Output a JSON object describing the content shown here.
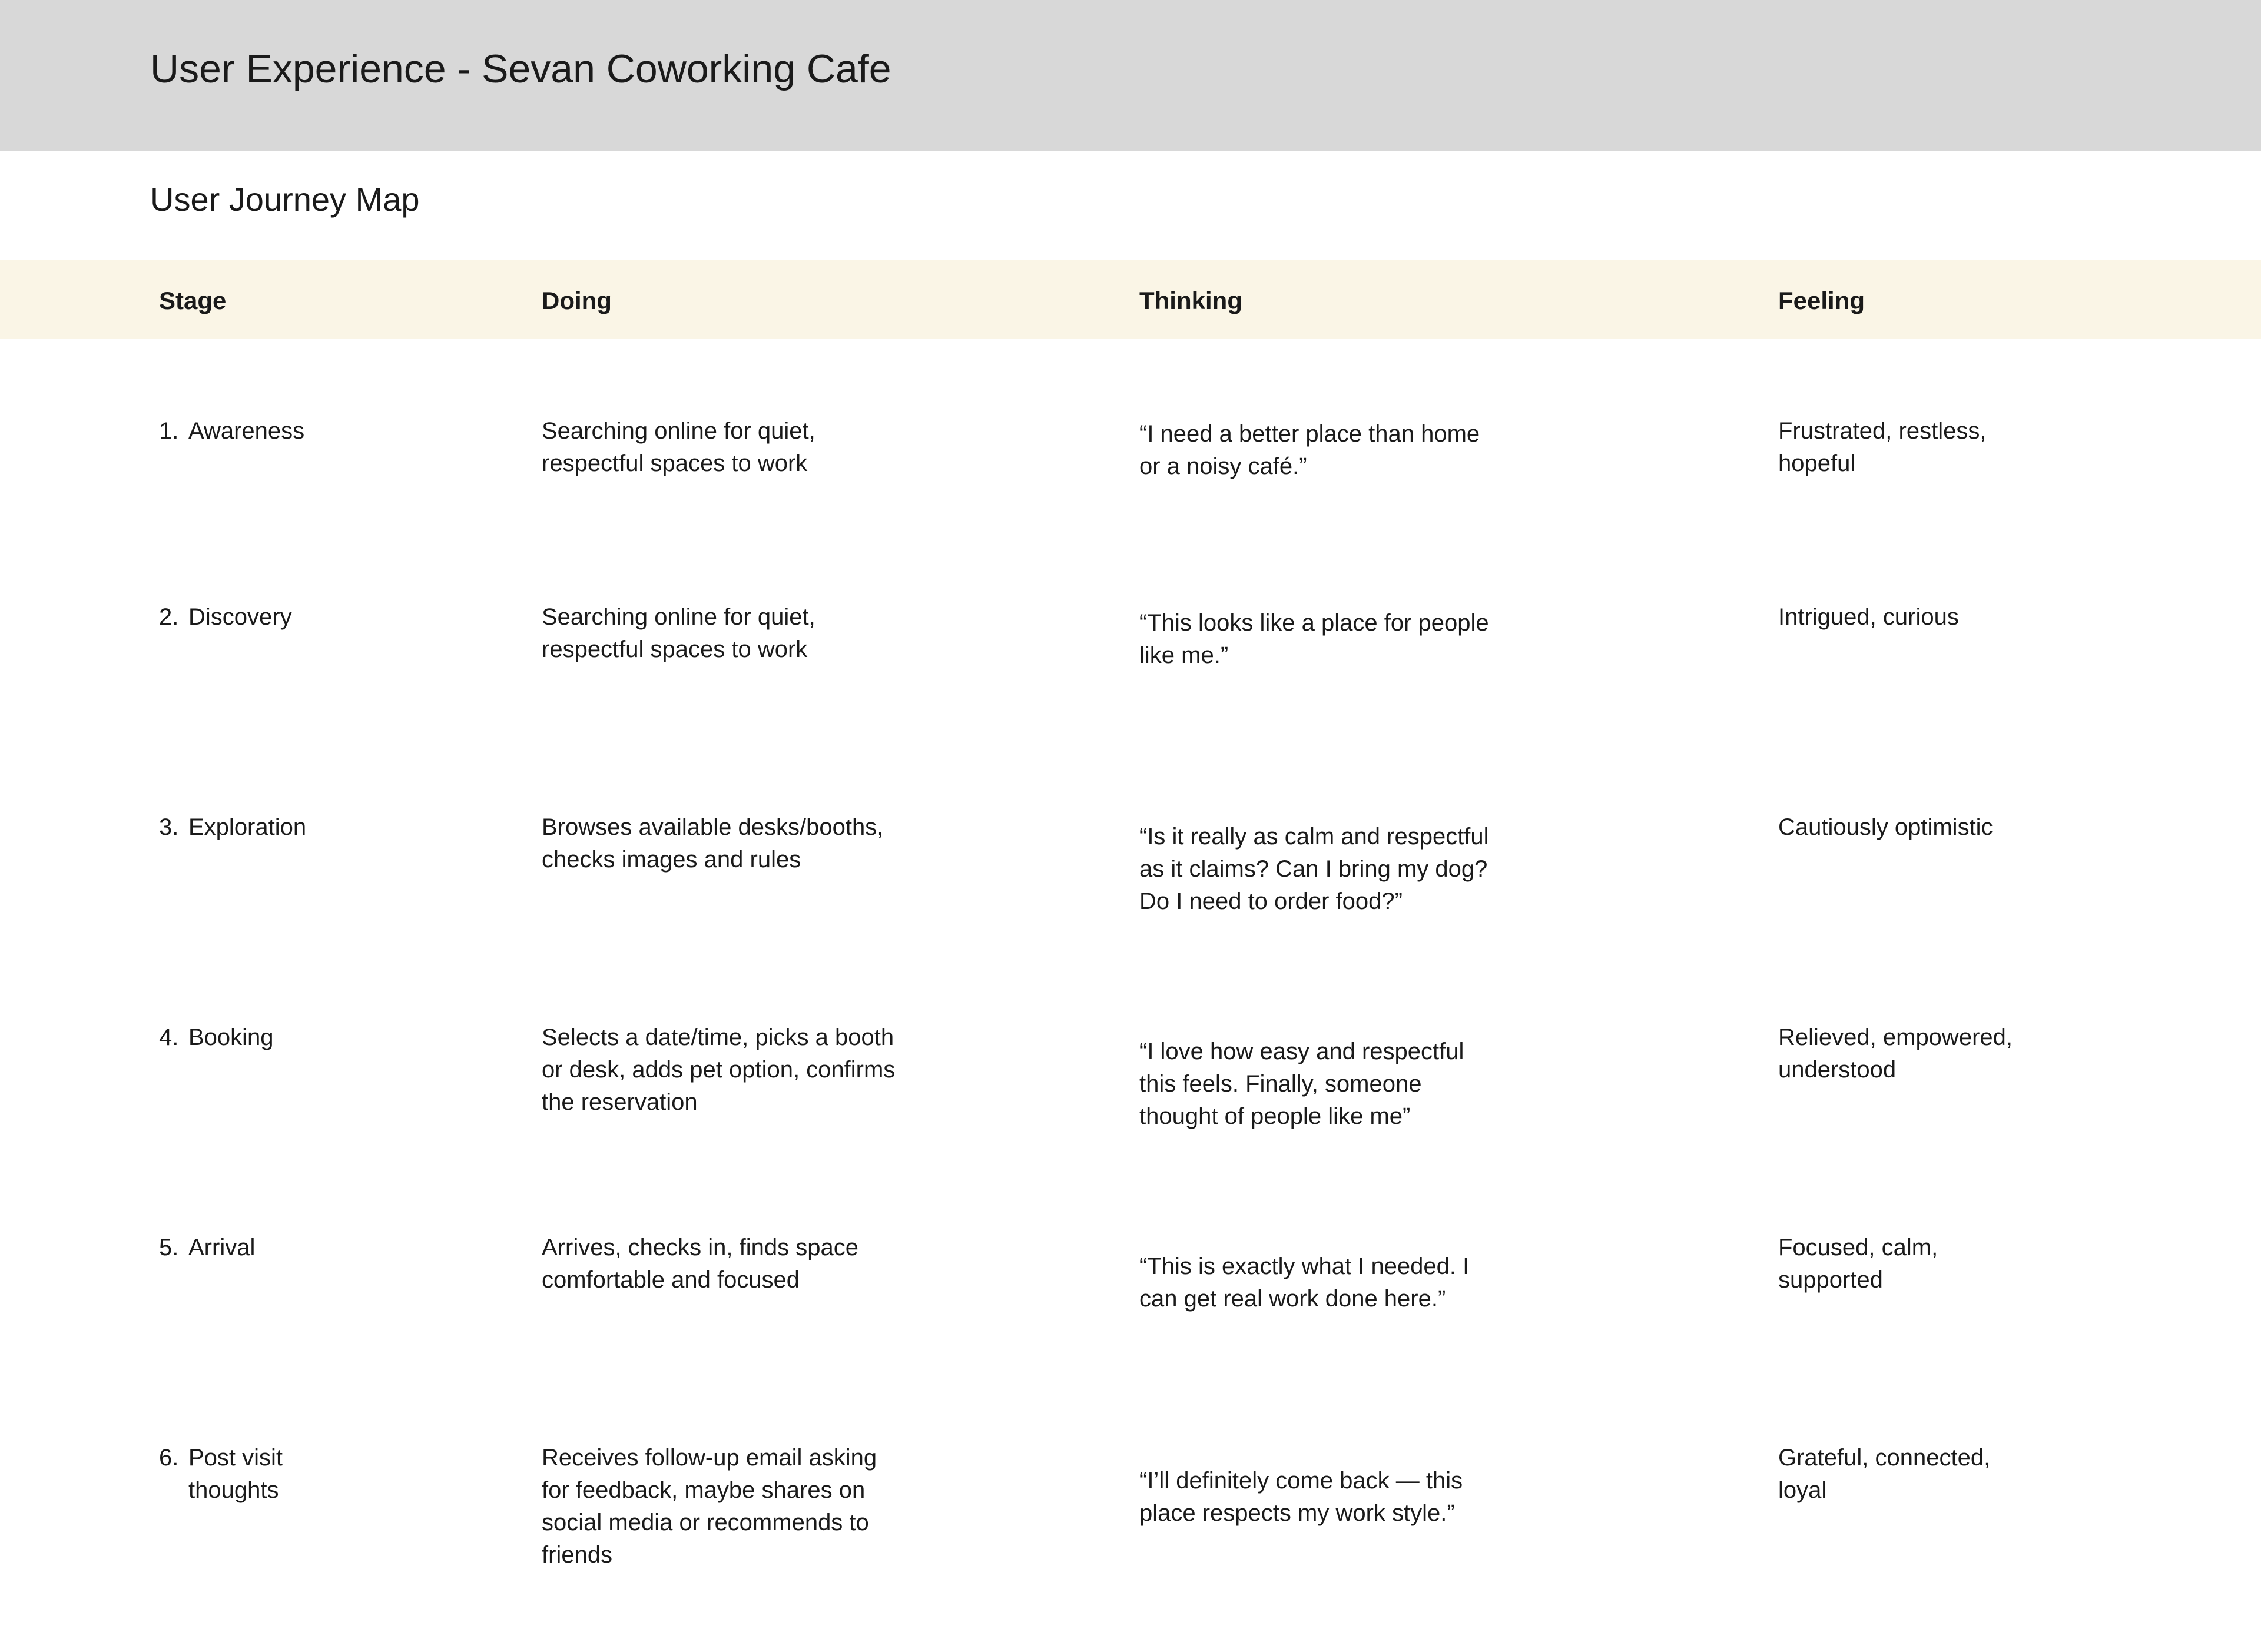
{
  "page": {
    "doc_title": "User Experience - Sevan Coworking Cafe",
    "section_title": "User Journey Map"
  },
  "colors": {
    "header_band": "#d8d8d8",
    "table_header_band": "#faf5e6",
    "text": "#1a1a1a",
    "background": "#ffffff"
  },
  "journey_table": {
    "columns": [
      "Stage",
      "Doing",
      "Thinking",
      "Feeling"
    ],
    "rows": [
      {
        "stage_number": "1.",
        "stage_label": "Awareness",
        "doing": "Searching online for quiet,\nrespectful spaces to work",
        "thinking": "“I need a better place than home\nor a noisy café.”",
        "feeling": "Frustrated, restless,\nhopeful"
      },
      {
        "stage_number": "2.",
        "stage_label": "Discovery",
        "doing": "Searching online for quiet,\nrespectful spaces to work",
        "thinking": "“This looks like a place for people\nlike me.”",
        "feeling": "Intrigued, curious"
      },
      {
        "stage_number": "3.",
        "stage_label": "Exploration",
        "doing": "Browses available desks/booths,\nchecks images and rules",
        "thinking": "“Is it really as calm and respectful\nas it claims? Can I bring my dog?\nDo I need to order food?”",
        "feeling": "Cautiously optimistic"
      },
      {
        "stage_number": "4.",
        "stage_label": "Booking",
        "doing": "Selects a date/time, picks a booth\nor desk, adds pet option, confirms\nthe reservation",
        "thinking": "“I love how easy and respectful\nthis feels. Finally, someone\nthought of people like me”",
        "feeling": "Relieved, empowered,\nunderstood"
      },
      {
        "stage_number": "5.",
        "stage_label": "Arrival",
        "doing": "Arrives, checks in, finds space\ncomfortable and focused",
        "thinking": "“This is exactly what I needed. I\ncan get real work done here.”",
        "feeling": "Focused, calm,\nsupported"
      },
      {
        "stage_number": "6.",
        "stage_label": "Post visit thoughts",
        "doing": "Receives follow-up email asking\nfor feedback, maybe shares on\nsocial media or recommends to\nfriends",
        "thinking": "“I’ll definitely come back — this\nplace respects my work style.”",
        "feeling": "Grateful, connected,\nloyal"
      }
    ]
  }
}
